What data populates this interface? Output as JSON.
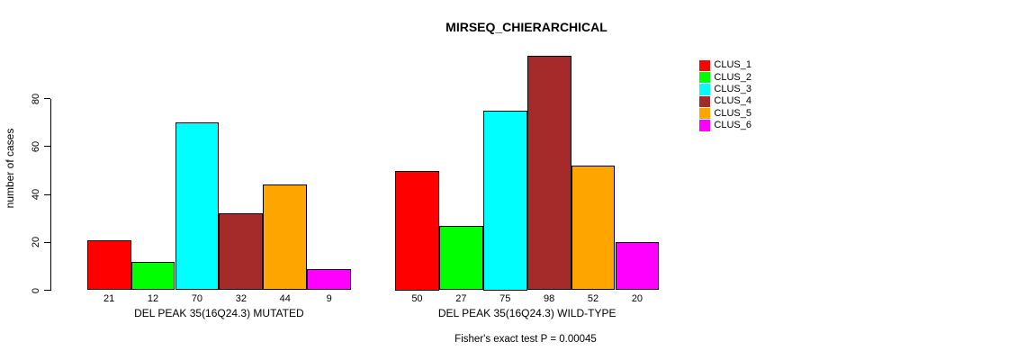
{
  "chart_data": {
    "type": "bar",
    "title": "MIRSEQ_CHIERARCHICAL",
    "ylabel": "number of cases",
    "xlabel": "",
    "yticks": [
      0,
      20,
      40,
      60,
      80
    ],
    "ylim": [
      0,
      101
    ],
    "grid": false,
    "legend_position": "right",
    "series_labels": [
      "CLUS_1",
      "CLUS_2",
      "CLUS_3",
      "CLUS_4",
      "CLUS_5",
      "CLUS_6"
    ],
    "colors": [
      "#ff0000",
      "#00ff00",
      "#00ffff",
      "#a52a2a",
      "#ffa500",
      "#ff00ff"
    ],
    "groups": [
      {
        "label": "DEL PEAK 35(16Q24.3) MUTATED",
        "values": [
          21,
          12,
          70,
          32,
          44,
          9
        ]
      },
      {
        "label": "DEL PEAK 35(16Q24.3) WILD-TYPE",
        "values": [
          50,
          27,
          75,
          98,
          52,
          20
        ]
      }
    ],
    "annotation": "Fisher's exact test P = 0.00045"
  }
}
